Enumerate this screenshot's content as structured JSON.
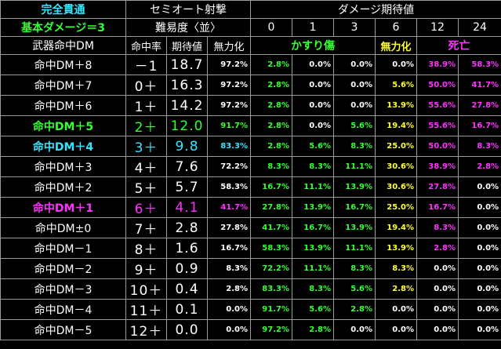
{
  "header": {
    "title": "完全貫通",
    "base_damage": "基本ダメージ＝3",
    "weapon_label": "武器命中DM",
    "fire_mode": "セミオート射撃",
    "difficulty": "難易度〈並〉",
    "expected_damage": "ダメージ期待値",
    "col_hit_rate": "命中率",
    "col_expected": "期待値",
    "col_neutralize": "無力化",
    "damage_values": [
      "0",
      "1",
      "3",
      "6",
      "12",
      "24"
    ],
    "cat_graze": "かすり傷",
    "cat_neutralize": "無力化",
    "cat_death": "死亡"
  },
  "colors": {
    "graze": "#33ff33",
    "neutralize": "#ffff33",
    "death": "#ff33ff",
    "highlight_green": "#33ff33",
    "highlight_cyan": "#33e6ff",
    "highlight_magenta": "#ff33ff"
  },
  "rows": [
    {
      "dm": "命中DM＋8",
      "hit": "－1",
      "exp": "18.7",
      "neut": "97.2%",
      "v": [
        "2.8%",
        "0.0%",
        "0.0%",
        "0.0%",
        "38.9%",
        "58.3%"
      ]
    },
    {
      "dm": "命中DM＋7",
      "hit": "0＋",
      "exp": "16.3",
      "neut": "97.2%",
      "v": [
        "2.8%",
        "0.0%",
        "0.0%",
        "5.6%",
        "50.0%",
        "41.7%"
      ]
    },
    {
      "dm": "命中DM＋6",
      "hit": "1＋",
      "exp": "14.2",
      "neut": "97.2%",
      "v": [
        "2.8%",
        "0.0%",
        "0.0%",
        "13.9%",
        "55.6%",
        "27.8%"
      ]
    },
    {
      "dm": "命中DM＋5",
      "hit": "2＋",
      "exp": "12.0",
      "neut": "91.7%",
      "v": [
        "2.8%",
        "0.0%",
        "5.6%",
        "19.4%",
        "55.6%",
        "16.7%"
      ]
    },
    {
      "dm": "命中DM＋4",
      "hit": "3＋",
      "exp": "9.8",
      "neut": "83.3%",
      "v": [
        "2.8%",
        "5.6%",
        "8.3%",
        "25.0%",
        "50.0%",
        "8.3%"
      ]
    },
    {
      "dm": "命中DM＋3",
      "hit": "4＋",
      "exp": "7.6",
      "neut": "72.2%",
      "v": [
        "8.3%",
        "8.3%",
        "11.1%",
        "30.6%",
        "38.9%",
        "2.8%"
      ]
    },
    {
      "dm": "命中DM＋2",
      "hit": "5＋",
      "exp": "5.7",
      "neut": "58.3%",
      "v": [
        "16.7%",
        "11.1%",
        "13.9%",
        "30.6%",
        "27.8%",
        "0.0%"
      ]
    },
    {
      "dm": "命中DM＋1",
      "hit": "6＋",
      "exp": "4.1",
      "neut": "41.7%",
      "v": [
        "27.8%",
        "13.9%",
        "16.7%",
        "25.0%",
        "16.7%",
        "0.0%"
      ]
    },
    {
      "dm": "命中DM±0",
      "hit": "7＋",
      "exp": "2.8",
      "neut": "27.8%",
      "v": [
        "41.7%",
        "16.7%",
        "13.9%",
        "19.4%",
        "8.3%",
        "0.0%"
      ]
    },
    {
      "dm": "命中DM－1",
      "hit": "8＋",
      "exp": "1.6",
      "neut": "16.7%",
      "v": [
        "58.3%",
        "13.9%",
        "11.1%",
        "13.9%",
        "2.8%",
        "0.0%"
      ]
    },
    {
      "dm": "命中DM－2",
      "hit": "9＋",
      "exp": "0.9",
      "neut": "8.3%",
      "v": [
        "72.2%",
        "11.1%",
        "8.3%",
        "8.3%",
        "0.0%",
        "0.0%"
      ]
    },
    {
      "dm": "命中DM－3",
      "hit": "10＋",
      "exp": "0.4",
      "neut": "2.8%",
      "v": [
        "83.3%",
        "8.3%",
        "5.6%",
        "2.8%",
        "0.0%",
        "0.0%"
      ]
    },
    {
      "dm": "命中DM－4",
      "hit": "11＋",
      "exp": "0.1",
      "neut": "0.0%",
      "v": [
        "91.7%",
        "5.6%",
        "2.8%",
        "0.0%",
        "0.0%",
        "0.0%"
      ]
    },
    {
      "dm": "命中DM－5",
      "hit": "12＋",
      "exp": "0.0",
      "neut": "0.0%",
      "v": [
        "97.2%",
        "2.8%",
        "0.0%",
        "0.0%",
        "0.0%",
        "0.0%"
      ]
    }
  ]
}
